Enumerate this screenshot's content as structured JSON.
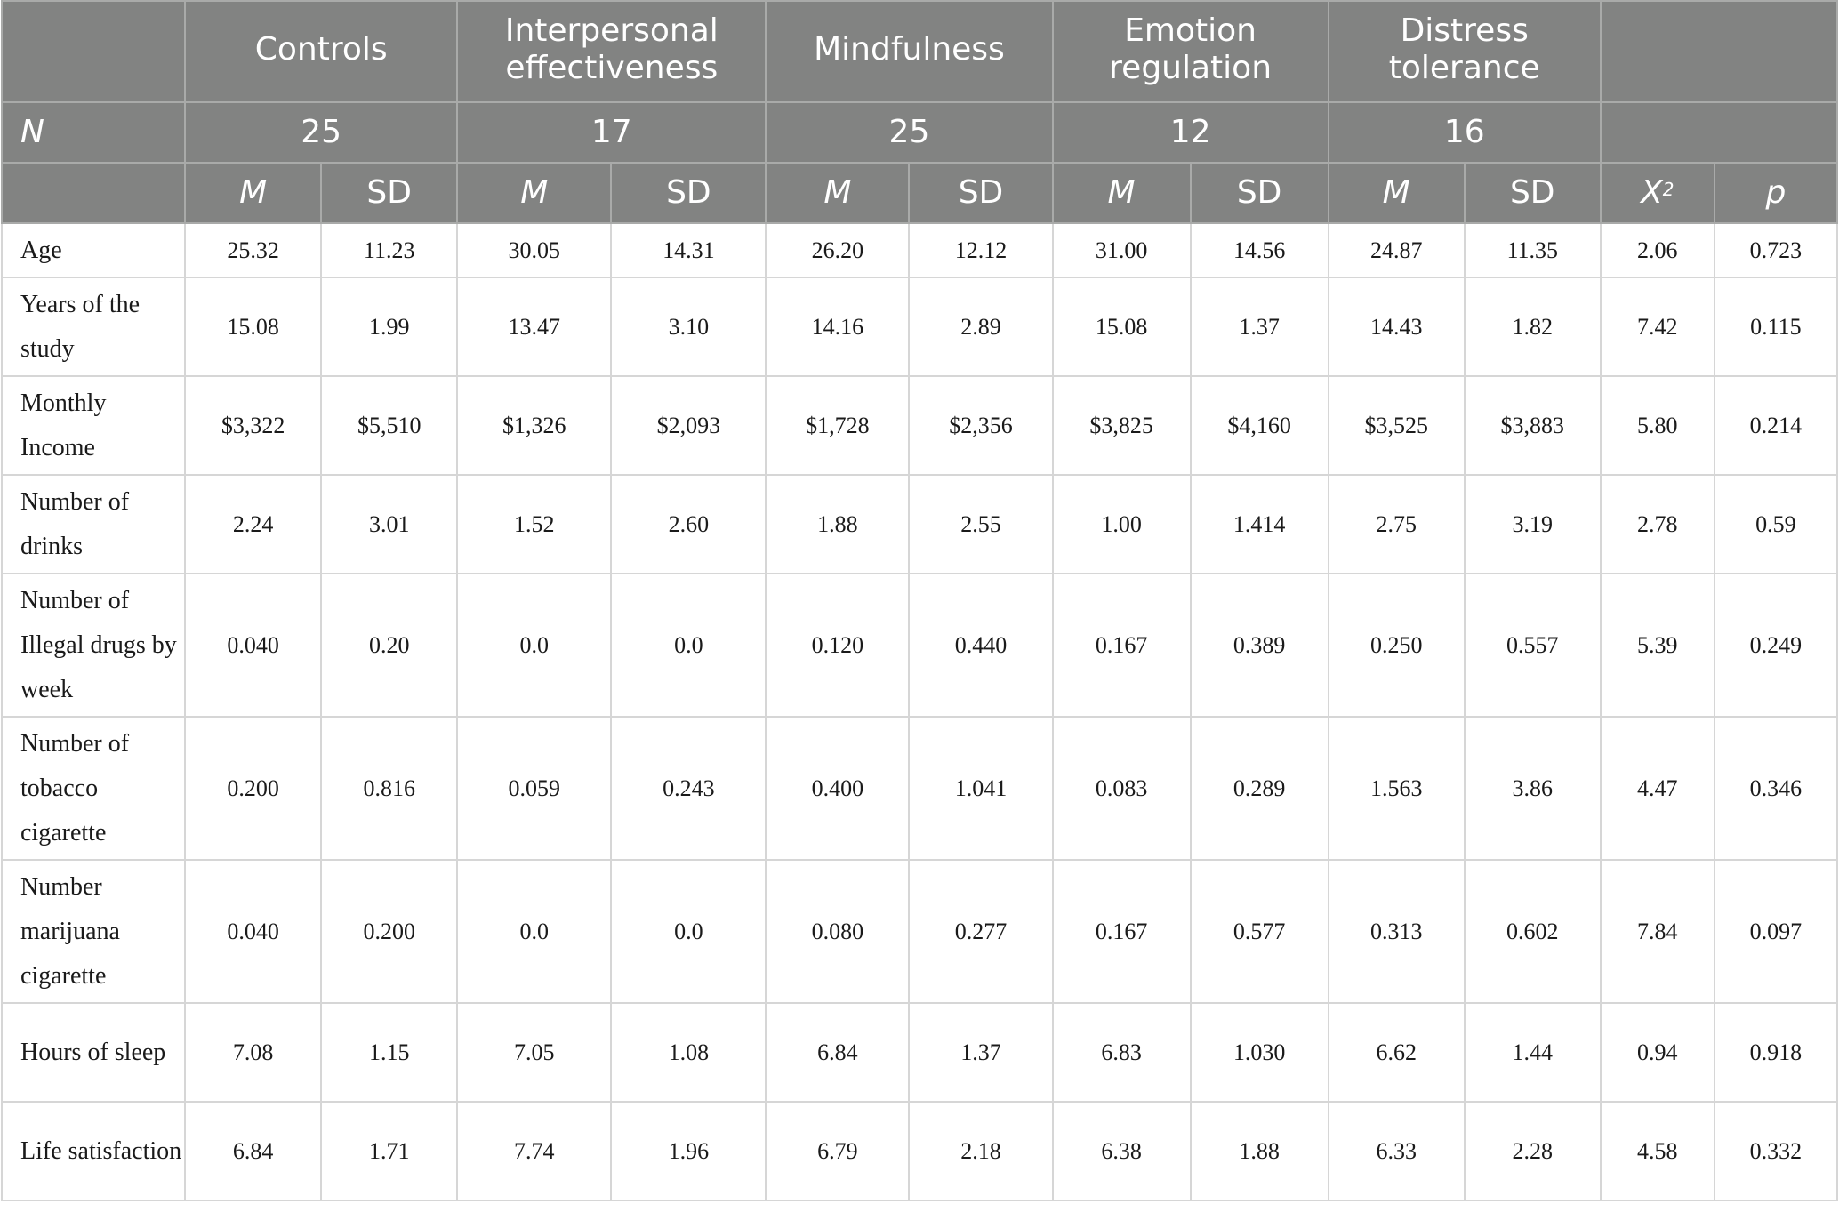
{
  "header": {
    "groups": [
      "Controls",
      "Interpersonal effectiveness",
      "Mindfulness",
      "Emotion regulation",
      "Distress tolerance"
    ],
    "n_label": "N",
    "n_values": [
      "25",
      "17",
      "25",
      "12",
      "16"
    ],
    "m_label": "M",
    "sd_label": "SD",
    "chi_label": "X",
    "chi_sup": "2",
    "p_label": "p"
  },
  "rows": [
    {
      "label": "Age",
      "values": [
        "25.32",
        "11.23",
        "30.05",
        "14.31",
        "26.20",
        "12.12",
        "31.00",
        "14.56",
        "24.87",
        "11.35",
        "2.06",
        "0.723"
      ]
    },
    {
      "label": "Years of the study",
      "values": [
        "15.08",
        "1.99",
        "13.47",
        "3.10",
        "14.16",
        "2.89",
        "15.08",
        "1.37",
        "14.43",
        "1.82",
        "7.42",
        "0.115"
      ]
    },
    {
      "label": "Monthly Income",
      "values": [
        "$3,322",
        "$5,510",
        "$1,326",
        "$2,093",
        "$1,728",
        "$2,356",
        "$3,825",
        "$4,160",
        "$3,525",
        "$3,883",
        "5.80",
        "0.214"
      ]
    },
    {
      "label": "Number of drinks",
      "values": [
        "2.24",
        "3.01",
        "1.52",
        "2.60",
        "1.88",
        "2.55",
        "1.00",
        "1.414",
        "2.75",
        "3.19",
        "2.78",
        "0.59"
      ]
    },
    {
      "label": "Number of Illegal drugs by week",
      "values": [
        "0.040",
        "0.20",
        "0.0",
        "0.0",
        "0.120",
        "0.440",
        "0.167",
        "0.389",
        "0.250",
        "0.557",
        "5.39",
        "0.249"
      ]
    },
    {
      "label": "Number of tobacco cigarette",
      "values": [
        "0.200",
        "0.816",
        "0.059",
        "0.243",
        "0.400",
        "1.041",
        "0.083",
        "0.289",
        "1.563",
        "3.86",
        "4.47",
        "0.346"
      ]
    },
    {
      "label": "Number marijuana cigarette",
      "values": [
        "0.040",
        "0.200",
        "0.0",
        "0.0",
        "0.080",
        "0.277",
        "0.167",
        "0.577",
        "0.313",
        "0.602",
        "7.84",
        "0.097"
      ]
    },
    {
      "label": "Hours of sleep",
      "values": [
        "7.08",
        "1.15",
        "7.05",
        "1.08",
        "6.84",
        "1.37",
        "6.83",
        "1.030",
        "6.62",
        "1.44",
        "0.94",
        "0.918"
      ]
    },
    {
      "label": "Life satisfaction",
      "values": [
        "6.84",
        "1.71",
        "7.74",
        "1.96",
        "6.79",
        "2.18",
        "6.38",
        "1.88",
        "6.33",
        "2.28",
        "4.58",
        "0.332"
      ]
    }
  ]
}
